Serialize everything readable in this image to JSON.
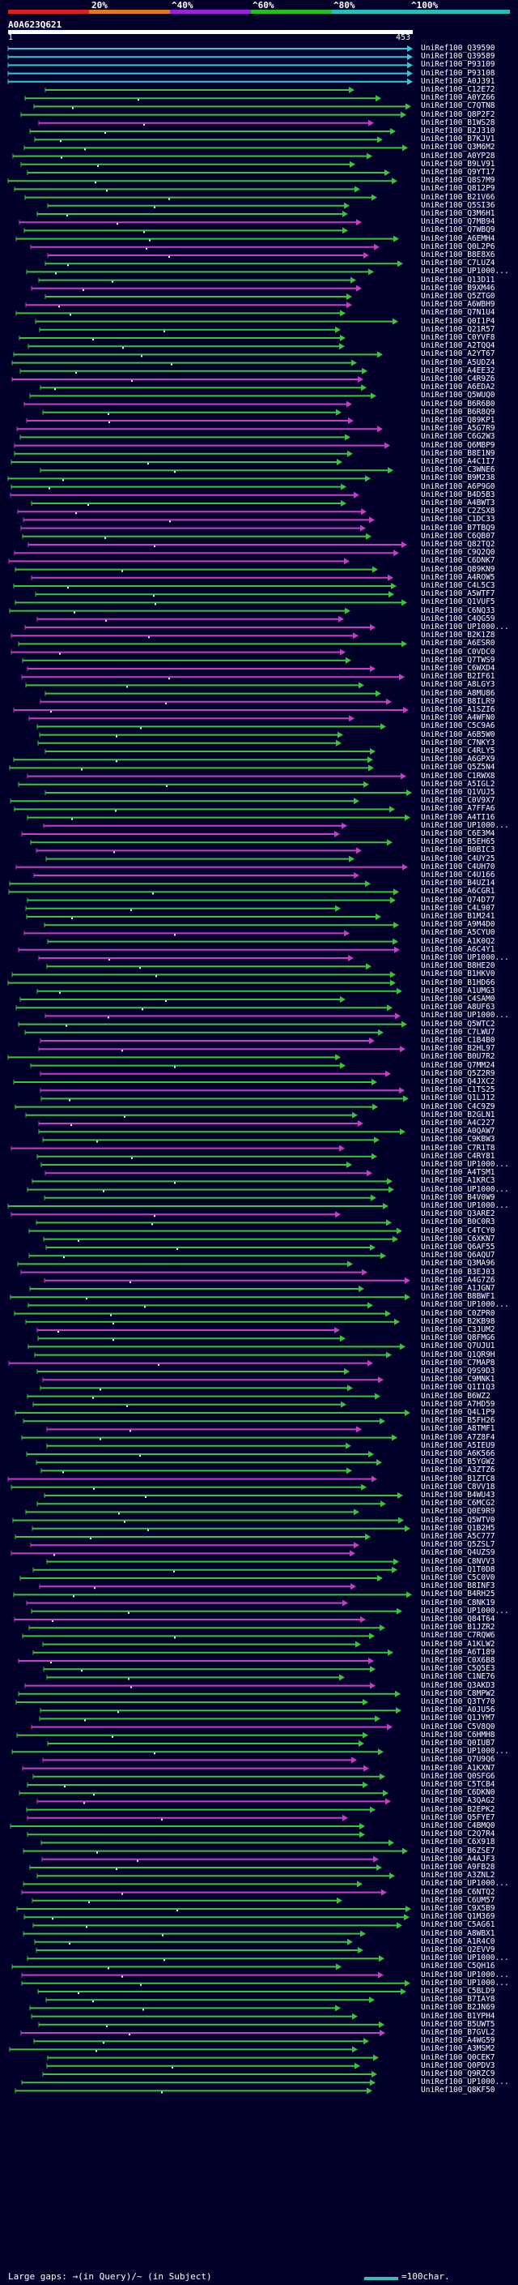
{
  "legend": {
    "marks": [
      "20%",
      "^40%",
      "^60%",
      "^80%",
      "^100%"
    ],
    "colors": [
      "#e02020",
      "#e07a1a",
      "#a020e0",
      "#20c020",
      "#20c0c0"
    ]
  },
  "query": {
    "id": "A0A623Q621",
    "start": "1",
    "end": "453"
  },
  "footer": {
    "gaps_text": "Large gaps: →(in Query)/~ (in Subject)",
    "scale_text": "=100char."
  },
  "colors": {
    "cyan": "#39c8d9",
    "green": "#3cc43c",
    "magenta": "#c83cc8"
  },
  "hits": [
    "UniRef100_Q39590",
    "UniRef100_Q39589",
    "UniRef100_P93109",
    "UniRef100_P93108",
    "UniRef100_A0J391",
    "UniRef100_C12E72",
    "UniRef100_A0YZ66",
    "UniRef100_C7QTN8",
    "UniRef100_Q8P2F2",
    "UniRef100_B1WS28",
    "UniRef100_B2J310",
    "UniRef100_B7KJV1",
    "UniRef100_Q3M6M2",
    "UniRef100_A0YP28",
    "UniRef100_B9LV91",
    "UniRef100_Q9YT17",
    "UniRef100_Q8S7M9",
    "UniRef100_Q812P9",
    "UniRef100_B21V66",
    "UniRef100_Q5SI36",
    "UniRef100_Q3M6H1",
    "UniRef100_Q7MB94",
    "UniRef100_Q7WBQ9",
    "UniRef100_A6EMH4",
    "UniRef100_Q0L2P6",
    "UniRef100_B8E8X6",
    "UniRef100_C7LUZ4",
    "UniRef100_UP1000...",
    "UniRef100_Q13D11",
    "UniRef100_B9XM46",
    "UniRef100_Q5ZTG0",
    "UniRef100_A6WBH9",
    "UniRef100_Q7N1U4",
    "UniRef100_Q0I1P4",
    "UniRef100_Q21R57",
    "UniRef100_C0YVF8",
    "UniRef100_A2TQQ4",
    "UniRef100_A2YT67",
    "UniRef100_A5UDZ4",
    "UniRef100_A4EE32",
    "UniRef100_C4R9Z6",
    "UniRef100_A6EDA2",
    "UniRef100_Q5WUQ0",
    "UniRef100_B6R6B0",
    "UniRef100_B6R8Q9",
    "UniRef100_Q89KP1",
    "UniRef100_A5G7R9",
    "UniRef100_C6G2W3",
    "UniRef100_Q6MBP9",
    "UniRef100_B8E1N9",
    "UniRef100_A4C1I7",
    "UniRef100_C3WNE6",
    "UniRef100_B9M238",
    "UniRef100_A6P9G0",
    "UniRef100_B4D5B3",
    "UniRef100_A4BWT3",
    "UniRef100_C2ZSX8",
    "UniRef100_C1DC33",
    "UniRef100_B7TBQ9",
    "UniRef100_C6QB07",
    "UniRef100_Q82TQ2",
    "UniRef100_C9Q2Q0",
    "UniRef100_C6DNK7",
    "UniRef100_Q89KN9",
    "UniRef100_A4ROW5",
    "UniRef100_C4L5C3",
    "UniRef100_A5WTF7",
    "UniRef100_Q1VUF5",
    "UniRef100_C6NQ33",
    "UniRef100_C4QG59",
    "UniRef100_UP1000...",
    "UniRef100_B2K1Z8",
    "UniRef100_A6ESR0",
    "UniRef100_C0VDC0",
    "UniRef100_Q7TWS9",
    "UniRef100_C6WXD4",
    "UniRef100_B2IF61",
    "UniRef100_A8LGY3",
    "UniRef100_A8MU86",
    "UniRef100_B8ILR9",
    "UniRef100_A1SZI6",
    "UniRef100_A4WFN0",
    "UniRef100_C5C9A6",
    "UniRef100_A6B5W0",
    "UniRef100_C7NKY3",
    "UniRef100_C4RLY5",
    "UniRef100_A6GPX9",
    "UniRef100_Q5Z5N4",
    "UniRef100_C1RWX8",
    "UniRef100_A5IGL2",
    "UniRef100_Q1VUJ5",
    "UniRef100_C0V9X7",
    "UniRef100_A7FFA6",
    "UniRef100_A4TI16",
    "UniRef100_UP1000...",
    "UniRef100_C6E3M4",
    "UniRef100_B5EH65",
    "UniRef100_B0BIC3",
    "UniRef100_C4UY25",
    "UniRef100_C4UH70",
    "UniRef100_C4U166",
    "UniRef100_B4UZ14",
    "UniRef100_A6CGR1",
    "UniRef100_Q74D77",
    "UniRef100_C4L907",
    "UniRef100_B1M241",
    "UniRef100_A9M4D0",
    "UniRef100_A5CYU0",
    "UniRef100_A1K0Q2",
    "UniRef100_A6C4Y1",
    "UniRef100_UP1000...",
    "UniRef100_B8HE20",
    "UniRef100_B1HKV0",
    "UniRef100_B1HD66",
    "UniRef100_A1UMG3",
    "UniRef100_C4SAM0",
    "UniRef100_A8UF63",
    "UniRef100_UP1000...",
    "UniRef100_Q5WTC2",
    "UniRef100_C7LWU7",
    "UniRef100_C1B4B0",
    "UniRef100_B2HL97",
    "UniRef100_B0U7R2",
    "UniRef100_Q7MM24",
    "UniRef100_Q5Z2R9",
    "UniRef100_Q4JXC2",
    "UniRef100_C1TS25",
    "UniRef100_Q1LJ12",
    "UniRef100_C4C9Z9",
    "UniRef100_B2GLN1",
    "UniRef100_A4C227",
    "UniRef100_A0QAW7",
    "UniRef100_C9KBW3",
    "UniRef100_C7R1T8",
    "UniRef100_C4RY81",
    "UniRef100_UP1000...",
    "UniRef100_A4TSM1",
    "UniRef100_A1KRC3",
    "UniRef100_UP1000...",
    "UniRef100_B4V0W9",
    "UniRef100_UP1000...",
    "UniRef100_Q3ARE2",
    "UniRef100_B0C0R3",
    "UniRef100_C4TCY0",
    "UniRef100_C6XKN7",
    "UniRef100_Q6AF55",
    "UniRef100_Q6AQU7",
    "UniRef100_Q3MA96",
    "UniRef100_B3EJ03",
    "UniRef100_A4G7Z6",
    "UniRef100_A1JGN7",
    "UniRef100_B8BWF1",
    "UniRef100_UP1000...",
    "UniRef100_C0ZPR0",
    "UniRef100_B2KB98",
    "UniRef100_C3JUM2",
    "UniRef100_Q8FMG6",
    "UniRef100_Q7UJU1",
    "UniRef100_Q1QR9H",
    "UniRef100_C7MAP8",
    "UniRef100_Q9S9D3",
    "UniRef100_C9MNK1",
    "UniRef100_Q1I1Q3",
    "UniRef100_B6WZ2",
    "UniRef100_A7HD59",
    "UniRef100_Q4L1P9",
    "UniRef100_B5FH26",
    "UniRef100_A8TMF1",
    "UniRef100_A7Z8F4",
    "UniRef100_A5IEU9",
    "UniRef100_A6K566",
    "UniRef100_B5YGW2",
    "UniRef100_A3ZTZ6",
    "UniRef100_B1ZTC8",
    "UniRef100_C8VV18",
    "UniRef100_B4WU43",
    "UniRef100_C6MCG2",
    "UniRef100_Q0E9R9",
    "UniRef100_Q5WTV0",
    "UniRef100_Q1B2H5",
    "UniRef100_A5C777",
    "UniRef100_Q5ZSL7",
    "UniRef100_Q4UZS9",
    "UniRef100_C8NVV3",
    "UniRef100_Q1T0D8",
    "UniRef100_C5C0V0",
    "UniRef100_B8INF3",
    "UniRef100_B4RH25",
    "UniRef100_C8NK19",
    "UniRef100_UP1000...",
    "UniRef100_Q84T64",
    "UniRef100_B1JZR2",
    "UniRef100_C7RQW6",
    "UniRef100_A1KLW2",
    "UniRef100_A6T189",
    "UniRef100_C0X6B8",
    "UniRef100_C5Q5E3",
    "UniRef100_C1NE76",
    "UniRef100_Q3AKD3",
    "UniRef100_C8MPW2",
    "UniRef100_Q3TY70",
    "UniRef100_A0JU56",
    "UniRef100_Q1JYM7",
    "UniRef100_C5V8Q0",
    "UniRef100_C6HMH8",
    "UniRef100_Q0IUB7",
    "UniRef100_UP1000...",
    "UniRef100_Q7U9Q6",
    "UniRef100_A1KXN7",
    "UniRef100_Q0SFG6",
    "UniRef100_C5TCB4",
    "UniRef100_C6DKN0",
    "UniRef100_A3QAG2",
    "UniRef100_B2EPK2",
    "UniRef100_Q5FYE7",
    "UniRef100_C4BMQ0",
    "UniRef100_C2Q7R4",
    "UniRef100_C6X918",
    "UniRef100_B6ZSE7",
    "UniRef100_A4AJF3",
    "UniRef100_A9FB28",
    "UniRef100_A3ZNL2",
    "UniRef100_UP1000...",
    "UniRef100_C6NTQ2",
    "UniRef100_C6UM57",
    "UniRef100_C9X5B9",
    "UniRef100_Q1M369",
    "UniRef100_C5AG61",
    "UniRef100_A8WBX1",
    "UniRef100_A1R4C0",
    "UniRef100_Q2EVV9",
    "UniRef100_UP1000...",
    "UniRef100_C5QH16",
    "UniRef100_UP1000...",
    "UniRef100_UP1000...",
    "UniRef100_C5BLD9",
    "UniRef100_B7IAY8",
    "UniRef100_B2JN69",
    "UniRef100_B1YPH4",
    "UniRef100_B5UWT5",
    "UniRef100_B7GVL2",
    "UniRef100_A4WG59",
    "UniRef100_A3MSM2",
    "UniRef100_Q0CEK7",
    "UniRef100_Q0PDV3",
    "UniRef100_Q9RZC9",
    "UniRef100_UP1000...",
    "UniRef100_Q8KF50"
  ]
}
